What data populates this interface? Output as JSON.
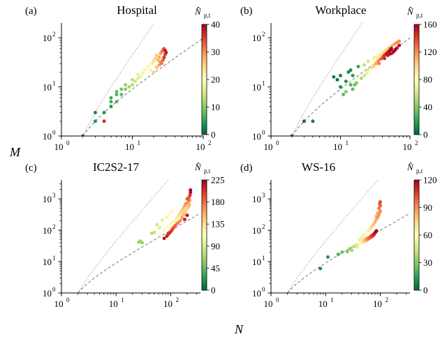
{
  "figure": {
    "xlabel": "N",
    "ylabel": "M"
  },
  "colors": {
    "colormap": [
      "#006837",
      "#1a9850",
      "#66bd63",
      "#a6d96a",
      "#d9ef8b",
      "#ffffbf",
      "#fee08b",
      "#fdae61",
      "#f46d43",
      "#d73027",
      "#a50026"
    ],
    "dashed_line": "#7f7f7f",
    "dotted_line": "#7f7f7f"
  },
  "chart_data": [
    {
      "type": "scatter",
      "panel_label": "(a)",
      "title": "Hospital",
      "xscale": "log",
      "yscale": "log",
      "xlim": [
        1,
        100
      ],
      "ylim": [
        1,
        200
      ],
      "xticks": [
        {
          "v": 1,
          "label": "10",
          "exp": "0"
        },
        {
          "v": 10,
          "label": "10",
          "exp": "1"
        },
        {
          "v": 100,
          "label": "10",
          "exp": "2"
        }
      ],
      "yticks": [
        {
          "v": 1,
          "label": "10",
          "exp": "0"
        },
        {
          "v": 10,
          "label": "10",
          "exp": "1"
        },
        {
          "v": 100,
          "label": "10",
          "exp": "2"
        }
      ],
      "colorbar": {
        "label": "N̂",
        "sub": "p,t",
        "min": 0,
        "max": 40,
        "ticks": [
          "0",
          "10",
          "20",
          "30",
          "40"
        ]
      },
      "points": [
        [
          2,
          1,
          2
        ],
        [
          4,
          2,
          36
        ],
        [
          3,
          2,
          4
        ],
        [
          3,
          3,
          3
        ],
        [
          4,
          3,
          4
        ],
        [
          5,
          4,
          4
        ],
        [
          5,
          5,
          6
        ],
        [
          6,
          5,
          7
        ],
        [
          5,
          6,
          6
        ],
        [
          6,
          7,
          7
        ],
        [
          7,
          7,
          8
        ],
        [
          6,
          8,
          8
        ],
        [
          7,
          9,
          9
        ],
        [
          8,
          9,
          10
        ],
        [
          9,
          10,
          12
        ],
        [
          8,
          11,
          11
        ],
        [
          10,
          11,
          13
        ],
        [
          11,
          13,
          15
        ],
        [
          10,
          14,
          14
        ],
        [
          12,
          15,
          16
        ],
        [
          13,
          16,
          17
        ],
        [
          12,
          18,
          17
        ],
        [
          14,
          19,
          18
        ],
        [
          15,
          22,
          19
        ],
        [
          16,
          24,
          20
        ],
        [
          18,
          22,
          22
        ],
        [
          17,
          27,
          21
        ],
        [
          19,
          30,
          23
        ],
        [
          20,
          34,
          24
        ],
        [
          21,
          38,
          25
        ],
        [
          22,
          44,
          26
        ],
        [
          24,
          40,
          28
        ],
        [
          23,
          35,
          27
        ],
        [
          25,
          48,
          29
        ],
        [
          26,
          52,
          30
        ],
        [
          27,
          56,
          32
        ],
        [
          28,
          60,
          34
        ],
        [
          29,
          46,
          35
        ],
        [
          30,
          50,
          37
        ],
        [
          28,
          40,
          36
        ],
        [
          27,
          35,
          33
        ],
        [
          26,
          30,
          31
        ],
        [
          24,
          28,
          29
        ],
        [
          22,
          25,
          27
        ],
        [
          20,
          20,
          25
        ],
        [
          25,
          32,
          30
        ],
        [
          29,
          55,
          38
        ]
      ]
    },
    {
      "type": "scatter",
      "panel_label": "(b)",
      "title": "Workplace",
      "xscale": "log",
      "yscale": "log",
      "xlim": [
        1,
        100
      ],
      "ylim": [
        1,
        200
      ],
      "xticks": [
        {
          "v": 1,
          "label": "10",
          "exp": "0"
        },
        {
          "v": 10,
          "label": "10",
          "exp": "1"
        },
        {
          "v": 100,
          "label": "10",
          "exp": "2"
        }
      ],
      "yticks": [
        {
          "v": 1,
          "label": "10",
          "exp": "0"
        },
        {
          "v": 10,
          "label": "10",
          "exp": "1"
        },
        {
          "v": 100,
          "label": "10",
          "exp": "2"
        }
      ],
      "colorbar": {
        "label": "N̂",
        "sub": "p,t",
        "min": 0,
        "max": 160,
        "ticks": [
          "0",
          "40",
          "80",
          "120",
          "160"
        ]
      },
      "points": [
        [
          2,
          1,
          5
        ],
        [
          3,
          2,
          4
        ],
        [
          4,
          2,
          10
        ],
        [
          8,
          16,
          8
        ],
        [
          9,
          14,
          6
        ],
        [
          10,
          17,
          10
        ],
        [
          13,
          20,
          12
        ],
        [
          14,
          22,
          12
        ],
        [
          10,
          10,
          14
        ],
        [
          11,
          7,
          30
        ],
        [
          12,
          8,
          40
        ],
        [
          12,
          13,
          16
        ],
        [
          15,
          17,
          18
        ],
        [
          14,
          11,
          28
        ],
        [
          16,
          11,
          35
        ],
        [
          17,
          12,
          38
        ],
        [
          15,
          9,
          30
        ],
        [
          18,
          26,
          22
        ],
        [
          20,
          15,
          50
        ],
        [
          22,
          17,
          60
        ],
        [
          24,
          19,
          70
        ],
        [
          25,
          22,
          65
        ],
        [
          27,
          21,
          80
        ],
        [
          28,
          24,
          90
        ],
        [
          29,
          27,
          95
        ],
        [
          30,
          26,
          100
        ],
        [
          32,
          29,
          110
        ],
        [
          33,
          31,
          115
        ],
        [
          35,
          34,
          120
        ],
        [
          36,
          30,
          125
        ],
        [
          38,
          37,
          130
        ],
        [
          40,
          39,
          135
        ],
        [
          42,
          43,
          140
        ],
        [
          44,
          45,
          145
        ],
        [
          46,
          48,
          150
        ],
        [
          48,
          50,
          152
        ],
        [
          50,
          53,
          155
        ],
        [
          52,
          56,
          158
        ],
        [
          54,
          60,
          160
        ],
        [
          30,
          35,
          85
        ],
        [
          34,
          40,
          90
        ],
        [
          38,
          45,
          95
        ],
        [
          42,
          50,
          100
        ],
        [
          46,
          56,
          105
        ],
        [
          50,
          62,
          110
        ],
        [
          55,
          68,
          115
        ],
        [
          60,
          75,
          118
        ],
        [
          65,
          80,
          120
        ],
        [
          70,
          85,
          122
        ],
        [
          40,
          52,
          80
        ],
        [
          45,
          58,
          85
        ],
        [
          55,
          48,
          140
        ],
        [
          60,
          55,
          145
        ],
        [
          65,
          62,
          150
        ],
        [
          70,
          70,
          155
        ],
        [
          35,
          45,
          75
        ],
        [
          25,
          33,
          60
        ],
        [
          22,
          28,
          55
        ],
        [
          43,
          38,
          148
        ],
        [
          48,
          44,
          152
        ],
        [
          52,
          47,
          156
        ],
        [
          58,
          52,
          158
        ],
        [
          62,
          58,
          160
        ],
        [
          31,
          40,
          70
        ],
        [
          37,
          42,
          88
        ]
      ]
    },
    {
      "type": "scatter",
      "panel_label": "(c)",
      "title": "IC2S2-17",
      "xscale": "log",
      "yscale": "log",
      "xlim": [
        1,
        350
      ],
      "ylim": [
        1,
        4000
      ],
      "xticks": [
        {
          "v": 1,
          "label": "10",
          "exp": "0"
        },
        {
          "v": 10,
          "label": "10",
          "exp": "1"
        },
        {
          "v": 100,
          "label": "10",
          "exp": "2"
        }
      ],
      "yticks": [
        {
          "v": 1,
          "label": "10",
          "exp": "0"
        },
        {
          "v": 10,
          "label": "10",
          "exp": "1"
        },
        {
          "v": 100,
          "label": "10",
          "exp": "2"
        },
        {
          "v": 1000,
          "label": "10",
          "exp": "3"
        }
      ],
      "colorbar": {
        "label": "N̂",
        "sub": "p,t",
        "min": 0,
        "max": 225,
        "ticks": [
          "0",
          "45",
          "90",
          "135",
          "180",
          "225"
        ]
      },
      "points": [
        [
          26,
          42,
          60
        ],
        [
          28,
          45,
          65
        ],
        [
          30,
          40,
          62
        ],
        [
          45,
          80,
          75
        ],
        [
          50,
          85,
          78
        ],
        [
          56,
          150,
          85
        ],
        [
          62,
          120,
          90
        ],
        [
          70,
          210,
          95
        ],
        [
          76,
          55,
          215
        ],
        [
          85,
          65,
          210
        ],
        [
          90,
          75,
          205
        ],
        [
          95,
          82,
          200
        ],
        [
          100,
          90,
          200
        ],
        [
          105,
          100,
          195
        ],
        [
          110,
          115,
          190
        ],
        [
          115,
          125,
          185
        ],
        [
          120,
          140,
          180
        ],
        [
          130,
          160,
          175
        ],
        [
          140,
          180,
          170
        ],
        [
          150,
          200,
          165
        ],
        [
          160,
          250,
          160
        ],
        [
          170,
          300,
          150
        ],
        [
          180,
          360,
          145
        ],
        [
          190,
          420,
          140
        ],
        [
          200,
          480,
          140
        ],
        [
          210,
          550,
          145
        ],
        [
          220,
          650,
          155
        ],
        [
          210,
          800,
          165
        ],
        [
          220,
          900,
          175
        ],
        [
          215,
          1100,
          185
        ],
        [
          225,
          1300,
          200
        ],
        [
          230,
          1600,
          220
        ],
        [
          200,
          1000,
          190
        ],
        [
          190,
          700,
          170
        ],
        [
          180,
          600,
          160
        ],
        [
          170,
          500,
          150
        ],
        [
          160,
          420,
          145
        ],
        [
          150,
          350,
          140
        ],
        [
          140,
          300,
          135
        ],
        [
          130,
          250,
          130
        ],
        [
          120,
          200,
          125
        ],
        [
          110,
          180,
          120
        ],
        [
          100,
          150,
          118
        ],
        [
          90,
          130,
          115
        ],
        [
          80,
          110,
          112
        ],
        [
          75,
          95,
          110
        ],
        [
          95,
          320,
          110
        ],
        [
          85,
          260,
          105
        ],
        [
          105,
          400,
          120
        ],
        [
          180,
          220,
          210
        ],
        [
          200,
          300,
          215
        ],
        [
          230,
          1900,
          225
        ]
      ]
    },
    {
      "type": "scatter",
      "panel_label": "(d)",
      "title": "WS-16",
      "xscale": "log",
      "yscale": "log",
      "xlim": [
        1,
        350
      ],
      "ylim": [
        1,
        4000
      ],
      "xticks": [
        {
          "v": 1,
          "label": "10",
          "exp": "0"
        },
        {
          "v": 10,
          "label": "10",
          "exp": "1"
        },
        {
          "v": 100,
          "label": "10",
          "exp": "2"
        }
      ],
      "yticks": [
        {
          "v": 1,
          "label": "10",
          "exp": "0"
        },
        {
          "v": 10,
          "label": "10",
          "exp": "1"
        },
        {
          "v": 100,
          "label": "10",
          "exp": "2"
        },
        {
          "v": 1000,
          "label": "10",
          "exp": "3"
        }
      ],
      "colorbar": {
        "label": "N̂",
        "sub": "p,t",
        "min": 0,
        "max": 120,
        "ticks": [
          "0",
          "30",
          "60",
          "90",
          "120"
        ]
      },
      "points": [
        [
          8,
          6,
          10
        ],
        [
          11,
          14,
          12
        ],
        [
          17,
          17,
          20
        ],
        [
          20,
          20,
          25
        ],
        [
          25,
          21,
          28
        ],
        [
          28,
          26,
          32
        ],
        [
          30,
          23,
          35
        ],
        [
          33,
          30,
          40
        ],
        [
          36,
          33,
          45
        ],
        [
          38,
          29,
          50
        ],
        [
          40,
          36,
          55
        ],
        [
          42,
          40,
          60
        ],
        [
          44,
          38,
          62
        ],
        [
          46,
          44,
          66
        ],
        [
          48,
          41,
          70
        ],
        [
          50,
          48,
          74
        ],
        [
          52,
          45,
          78
        ],
        [
          54,
          52,
          82
        ],
        [
          56,
          48,
          86
        ],
        [
          58,
          55,
          90
        ],
        [
          60,
          52,
          92
        ],
        [
          62,
          58,
          95
        ],
        [
          64,
          56,
          98
        ],
        [
          66,
          62,
          100
        ],
        [
          68,
          60,
          102
        ],
        [
          70,
          68,
          104
        ],
        [
          72,
          65,
          106
        ],
        [
          74,
          72,
          108
        ],
        [
          76,
          70,
          110
        ],
        [
          78,
          78,
          112
        ],
        [
          80,
          82,
          115
        ],
        [
          82,
          88,
          118
        ],
        [
          85,
          95,
          120
        ],
        [
          50,
          70,
          55
        ],
        [
          55,
          80,
          60
        ],
        [
          60,
          95,
          65
        ],
        [
          65,
          110,
          70
        ],
        [
          70,
          130,
          75
        ],
        [
          75,
          150,
          78
        ],
        [
          80,
          180,
          82
        ],
        [
          85,
          220,
          85
        ],
        [
          90,
          260,
          88
        ],
        [
          95,
          320,
          90
        ],
        [
          100,
          400,
          92
        ],
        [
          95,
          500,
          95
        ],
        [
          100,
          600,
          98
        ],
        [
          98,
          700,
          100
        ],
        [
          100,
          800,
          102
        ],
        [
          90,
          350,
          86
        ],
        [
          85,
          280,
          84
        ],
        [
          45,
          55,
          52
        ],
        [
          48,
          62,
          54
        ],
        [
          42,
          50,
          50
        ]
      ]
    }
  ]
}
